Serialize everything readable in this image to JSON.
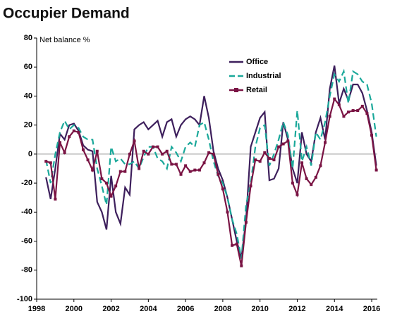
{
  "chart_data": {
    "type": "line",
    "title": "Occupier Demand",
    "ylabel": "Net balance %",
    "x": [
      1998.5,
      1998.75,
      1999,
      1999.25,
      1999.5,
      1999.75,
      2000,
      2000.25,
      2000.5,
      2000.75,
      2001,
      2001.25,
      2001.5,
      2001.75,
      2002,
      2002.25,
      2002.5,
      2002.75,
      2003,
      2003.25,
      2003.5,
      2003.75,
      2004,
      2004.25,
      2004.5,
      2004.75,
      2005,
      2005.25,
      2005.5,
      2005.75,
      2006,
      2006.25,
      2006.5,
      2006.75,
      2007,
      2007.25,
      2007.5,
      2007.75,
      2008,
      2008.25,
      2008.5,
      2008.75,
      2009,
      2009.25,
      2009.5,
      2009.75,
      2010,
      2010.25,
      2010.5,
      2010.75,
      2011,
      2011.25,
      2011.5,
      2011.75,
      2012,
      2012.25,
      2012.5,
      2012.75,
      2013,
      2013.25,
      2013.5,
      2013.75,
      2014,
      2014.25,
      2014.5,
      2014.75,
      2015,
      2015.25,
      2015.5,
      2015.75,
      2016,
      2016.25
    ],
    "series": [
      {
        "name": "Office",
        "color": "#3d1f5c",
        "linestyle": "solid",
        "values": [
          -16,
          -31,
          -10,
          14,
          10,
          20,
          21,
          16,
          6,
          3,
          2,
          -33,
          -40,
          -52,
          -15,
          -40,
          -48,
          -23,
          -28,
          17,
          20,
          22,
          17,
          20,
          23,
          12,
          22,
          24,
          12,
          20,
          24,
          26,
          24,
          20,
          40,
          25,
          2,
          -10,
          -18,
          -30,
          -45,
          -60,
          -72,
          -45,
          5,
          15,
          25,
          29,
          -18,
          -17,
          -10,
          22,
          10,
          -10,
          -20,
          15,
          0,
          -5,
          15,
          25,
          10,
          45,
          61,
          35,
          45,
          37,
          48,
          48,
          42,
          30,
          15,
          -8
        ]
      },
      {
        "name": "Industrial",
        "color": "#1aa89a",
        "linestyle": "dashed",
        "values": [
          -4,
          -20,
          0,
          15,
          23,
          17,
          20,
          18,
          12,
          10,
          10,
          -10,
          -22,
          -35,
          5,
          -5,
          -3,
          -7,
          -7,
          -5,
          -10,
          -2,
          5,
          5,
          -3,
          -5,
          -10,
          5,
          1,
          -5,
          5,
          8,
          5,
          20,
          22,
          10,
          -5,
          -15,
          -20,
          -30,
          -45,
          -55,
          -72,
          -35,
          -20,
          5,
          18,
          20,
          -8,
          0,
          10,
          22,
          13,
          -10,
          30,
          -5,
          5,
          -8,
          15,
          10,
          22,
          40,
          55,
          50,
          57,
          35,
          57,
          55,
          50,
          48,
          35,
          12
        ]
      },
      {
        "name": "Retail",
        "color": "#7a1444",
        "linestyle": "solid",
        "marker": "square",
        "values": [
          -5,
          -6,
          -31,
          8,
          1,
          12,
          16,
          15,
          3,
          -4,
          -11,
          2,
          -17,
          -20,
          -29,
          -22,
          -12,
          -12,
          0,
          9,
          -10,
          2,
          0,
          5,
          5,
          0,
          2,
          -7,
          -7,
          -14,
          -8,
          -12,
          -11,
          -11,
          -6,
          1,
          0,
          -14,
          -24,
          -40,
          -63,
          -62,
          -77,
          -47,
          -22,
          -4,
          -5,
          1,
          -3,
          -4,
          5,
          7,
          9,
          -20,
          -28,
          -6,
          -17,
          -21,
          -16,
          -8,
          8,
          26,
          38,
          34,
          26,
          29,
          30,
          30,
          33,
          28,
          13,
          -11
        ]
      }
    ],
    "xlim": [
      1998,
      2016.3
    ],
    "xticks": [
      1998,
      2000,
      2002,
      2004,
      2006,
      2008,
      2010,
      2012,
      2014,
      2016
    ],
    "ylim": [
      -100,
      80
    ],
    "yticks": [
      -100,
      -80,
      -60,
      -40,
      -20,
      0,
      20,
      40,
      60,
      80
    ]
  }
}
